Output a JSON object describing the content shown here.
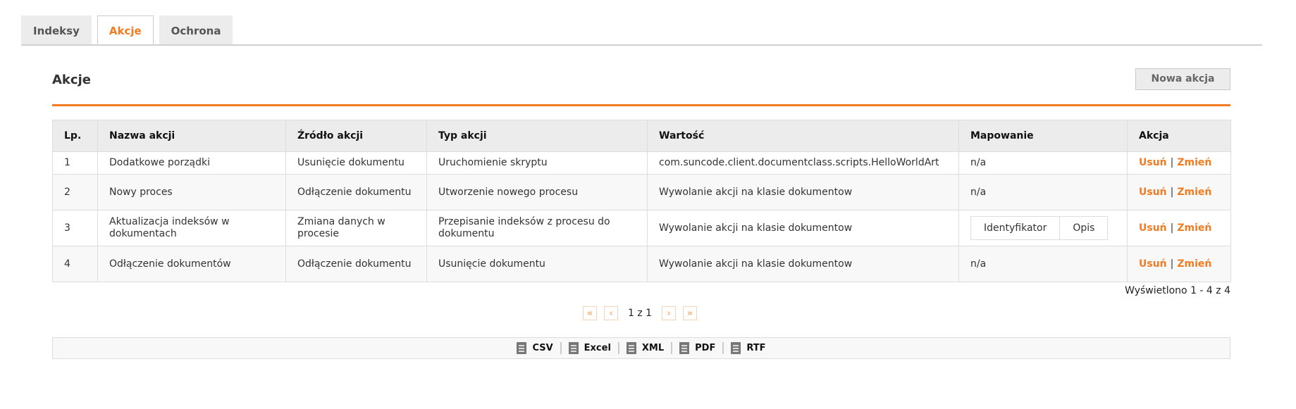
{
  "tabs": [
    {
      "label": "Indeksy",
      "active": false
    },
    {
      "label": "Akcje",
      "active": true
    },
    {
      "label": "Ochrona",
      "active": false
    }
  ],
  "section": {
    "title": "Akcje",
    "new_button": "Nowa akcja"
  },
  "colors": {
    "accent": "#f07b20",
    "header_bg": "#ececec"
  },
  "table": {
    "headers": [
      "Lp.",
      "Nazwa akcji",
      "Źródło akcji",
      "Typ akcji",
      "Wartość",
      "Mapowanie",
      "Akcja"
    ],
    "rows": [
      {
        "lp": "1",
        "name": "Dodatkowe porządki",
        "source": "Usunięcie dokumentu",
        "type": "Uruchomienie skryptu",
        "value": "com.suncode.client.documentclass.scripts.HelloWorldArt",
        "mapping": "n/a"
      },
      {
        "lp": "2",
        "name": "Nowy proces",
        "source": "Odłączenie dokumentu",
        "type": "Utworzenie nowego procesu",
        "value": "Wywolanie akcji na klasie dokumentow",
        "mapping": "n/a"
      },
      {
        "lp": "3",
        "name": "Aktualizacja indeksów w dokumentach",
        "source": "Zmiana danych w procesie",
        "type": "Przepisanie indeksów z procesu do dokumentu",
        "value": "Wywolanie akcji na klasie dokumentow",
        "mapping_cols": [
          "Identyfikator",
          "Opis"
        ]
      },
      {
        "lp": "4",
        "name": "Odłączenie dokumentów",
        "source": "Odłączenie dokumentu",
        "type": "Usunięcie dokumentu",
        "value": "Wywolanie akcji na klasie dokumentow",
        "mapping": "n/a"
      }
    ],
    "delete_label": "Usuń",
    "edit_label": "Zmień",
    "separator": "|"
  },
  "summary": "Wyświetlono 1 - 4 z 4",
  "pager": {
    "first": "«",
    "prev": "‹",
    "text": "1 z 1",
    "next": "›",
    "last": "»"
  },
  "export": [
    "CSV",
    "Excel",
    "XML",
    "PDF",
    "RTF"
  ]
}
